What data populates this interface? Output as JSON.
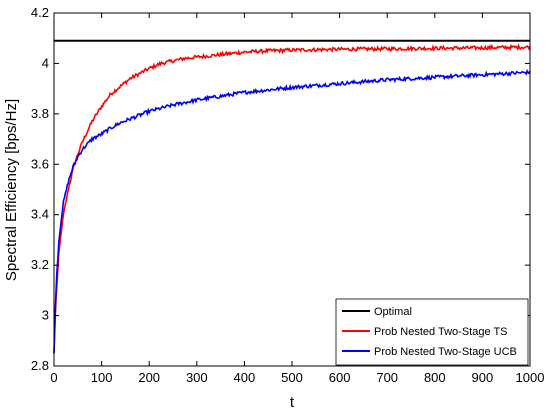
{
  "chart_data": {
    "type": "line",
    "title": "",
    "xlabel": "t",
    "ylabel": "Spectral Efficiency [bps/Hz]",
    "xlim": [
      0,
      1000
    ],
    "ylim": [
      2.8,
      4.2
    ],
    "xticks": [
      "0",
      "100",
      "200",
      "300",
      "400",
      "500",
      "600",
      "700",
      "800",
      "900",
      "1000"
    ],
    "yticks": [
      "2.8",
      "3",
      "3.2",
      "3.4",
      "3.6",
      "3.8",
      "4",
      "4.2"
    ],
    "grid": false,
    "legend_position": "bottom-right",
    "series": [
      {
        "name": "Optimal",
        "color": "#000000",
        "x": [
          0,
          1000
        ],
        "y": [
          4.09,
          4.09
        ]
      },
      {
        "name": "Prob Nested Two-Stage TS",
        "color": "#ff0000",
        "x": [
          0,
          3,
          6,
          10,
          15,
          20,
          30,
          40,
          50,
          60,
          70,
          80,
          90,
          100,
          120,
          140,
          160,
          180,
          200,
          225,
          250,
          275,
          300,
          350,
          400,
          450,
          500,
          600,
          700,
          800,
          900,
          1000
        ],
        "y": [
          2.85,
          3.02,
          3.12,
          3.24,
          3.33,
          3.4,
          3.5,
          3.58,
          3.64,
          3.69,
          3.73,
          3.77,
          3.8,
          3.83,
          3.88,
          3.91,
          3.94,
          3.96,
          3.98,
          4.0,
          4.01,
          4.02,
          4.025,
          4.035,
          4.045,
          4.05,
          4.053,
          4.056,
          4.058,
          4.06,
          4.062,
          4.065
        ]
      },
      {
        "name": "Prob Nested Two-Stage UCB",
        "color": "#0000ff",
        "x": [
          0,
          3,
          6,
          10,
          15,
          20,
          30,
          40,
          50,
          60,
          70,
          80,
          90,
          100,
          120,
          140,
          160,
          180,
          200,
          250,
          300,
          350,
          400,
          450,
          500,
          600,
          700,
          800,
          900,
          1000
        ],
        "y": [
          2.85,
          3.05,
          3.17,
          3.29,
          3.38,
          3.45,
          3.53,
          3.59,
          3.63,
          3.66,
          3.68,
          3.7,
          3.71,
          3.72,
          3.745,
          3.765,
          3.78,
          3.795,
          3.81,
          3.835,
          3.855,
          3.87,
          3.885,
          3.895,
          3.905,
          3.92,
          3.935,
          3.945,
          3.955,
          3.965
        ]
      }
    ]
  }
}
